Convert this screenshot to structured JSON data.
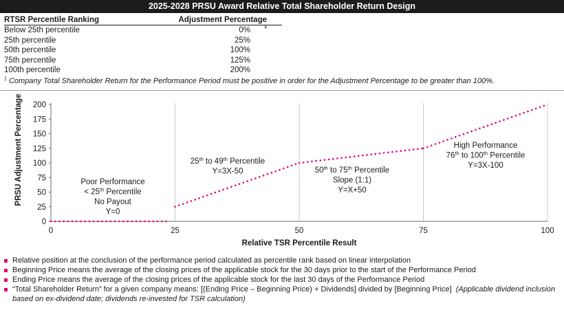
{
  "title": "2025-2028 PRSU Award Relative Total Shareholder Return Design",
  "table": {
    "headers": [
      "RTSR Percentile Ranking",
      "Adjustment Percentage"
    ],
    "header_sup": "1",
    "rows": [
      [
        "Below 25th percentile",
        "0%"
      ],
      [
        "25th percentile",
        "25%"
      ],
      [
        "50th percentile",
        "100%"
      ],
      [
        "75th percentile",
        "125%"
      ],
      [
        "100th percentile",
        "200%"
      ]
    ]
  },
  "footnote": {
    "marker": "1",
    "text": "Company Total Shareholder Return for the Performance Period must be positive in order for the Adjustment Percentage to be greater than 100%."
  },
  "chart_data": {
    "type": "line",
    "xlabel": "Relative TSR Percentile Result",
    "ylabel": "PRSU Adjustment Percentage",
    "xlim": [
      0,
      100
    ],
    "ylim": [
      0,
      200
    ],
    "xticks": [
      0,
      25,
      50,
      75,
      100
    ],
    "yticks": [
      0,
      25,
      50,
      75,
      100,
      125,
      150,
      175,
      200
    ],
    "grid": "vertical",
    "line_style": "dotted",
    "line_color": "#e20074",
    "segments": [
      {
        "x": [
          0,
          24
        ],
        "y": [
          0,
          0
        ]
      },
      {
        "x": [
          25,
          50
        ],
        "y": [
          25,
          100
        ]
      },
      {
        "x": [
          50,
          75
        ],
        "y": [
          100,
          125
        ]
      },
      {
        "x": [
          75,
          100
        ],
        "y": [
          125,
          200
        ]
      }
    ],
    "annotations": [
      {
        "lines": [
          "Poor Performance",
          "< 25th Percentile",
          "No Payout",
          "Y=0"
        ]
      },
      {
        "lines": [
          "25th to 49th Percentile",
          "Y=3X-50"
        ]
      },
      {
        "lines": [
          "50th to 75th Percentile",
          "Slope (1:1)",
          "Y=X+50"
        ]
      },
      {
        "lines": [
          "High Performance",
          "76th to 100th Percentile",
          "Y=3X-100"
        ]
      }
    ]
  },
  "bullets": [
    {
      "text": "Relative position at the conclusion of the performance period calculated as percentile rank based on linear interpolation",
      "italic": ""
    },
    {
      "text": "Beginning Price means the average of the closing prices of the applicable stock for the 30 days prior to the start of the Performance Period",
      "italic": ""
    },
    {
      "text": "Ending Price means the average of the closing prices of the applicable stock for the last 30 days of the Performance Period",
      "italic": ""
    },
    {
      "text": "“Total Shareholder Return” for a given company means: [(Ending Price – Beginning Price) + Dividends] divided by [Beginning Price]",
      "italic": "(Applicable dividend inclusion based on ex-dividend date; dividends re-invested for TSR calculation)"
    }
  ],
  "colors": {
    "accent": "#e20074",
    "header_bg": "#1c1c1c",
    "grid": "#c8c8c8"
  }
}
